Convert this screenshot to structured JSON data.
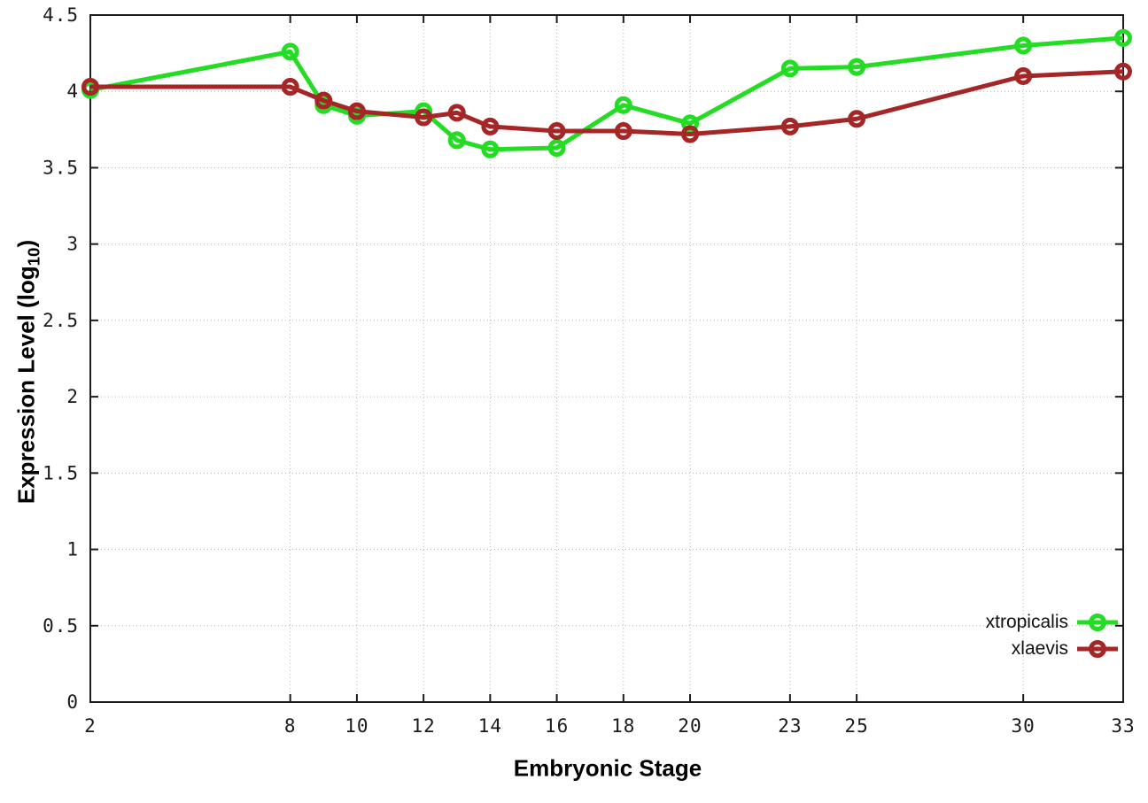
{
  "chart_data": {
    "type": "line",
    "title": "",
    "xlabel": "Embryonic Stage",
    "ylabel": "Expression Level (log10)",
    "ylabel_rich": {
      "pre": "Expression Level (log",
      "sub": "10",
      "post": ")"
    },
    "x": [
      2,
      8,
      9,
      10,
      12,
      13,
      14,
      16,
      18,
      20,
      23,
      25,
      30,
      33
    ],
    "series": [
      {
        "name": "xtropicalis",
        "color": "#23dc23",
        "marker": "open-circle",
        "values": [
          4.01,
          4.26,
          3.91,
          3.84,
          3.87,
          3.68,
          3.62,
          3.63,
          3.91,
          3.79,
          4.15,
          4.16,
          4.3,
          4.35
        ]
      },
      {
        "name": "xlaevis",
        "color": "#a52626",
        "marker": "open-circle",
        "values": [
          4.03,
          4.03,
          3.94,
          3.87,
          3.83,
          3.86,
          3.77,
          3.74,
          3.74,
          3.72,
          3.77,
          3.82,
          4.1,
          4.13
        ]
      }
    ],
    "xticks": [
      2,
      8,
      10,
      12,
      14,
      16,
      18,
      20,
      23,
      25,
      30,
      33
    ],
    "yticks": [
      0,
      0.5,
      1,
      1.5,
      2,
      2.5,
      3,
      3.5,
      4,
      4.5
    ],
    "ytick_labels": [
      "0",
      "0.5",
      "1",
      "1.5",
      "2",
      "2.5",
      "3",
      "3.5",
      "4",
      "4.5"
    ],
    "xlim": [
      2,
      33
    ],
    "ylim": [
      0,
      4.5
    ],
    "grid": true,
    "legend_position": "inside-bottom-right",
    "background": "#ffffff",
    "axis_color": "#1c1c1c",
    "grid_color": "#b3b3b3"
  }
}
